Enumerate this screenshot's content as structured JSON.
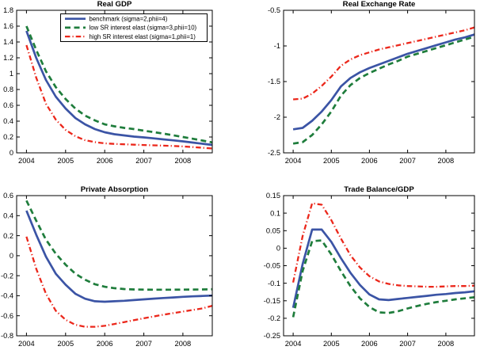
{
  "figure": {
    "background": "#ffffff",
    "axis_color": "#000000",
    "tick_label_color": "#000000"
  },
  "line_styles": [
    {
      "color": "#3B54A5",
      "dash": "solid",
      "width": 2.7
    },
    {
      "color": "#1F7D3C",
      "dash": "dashed",
      "width": 2.7
    },
    {
      "color": "#EB271B",
      "dash": "dashdot",
      "width": 2.3
    }
  ],
  "chart_data": [
    {
      "type": "line",
      "title": "Real GDP",
      "xlim": [
        2003.75,
        2008.75
      ],
      "ylim": [
        0,
        1.8
      ],
      "x_ticks": [
        "2004",
        "2005",
        "2006",
        "2007",
        "2008"
      ],
      "y_ticks": [
        "0",
        "0.2",
        "0.4",
        "0.6",
        "0.8",
        "1",
        "1.2",
        "1.4",
        "1.6",
        "1.8"
      ],
      "grid": false,
      "legend_visible": true,
      "x": [
        2004,
        2004.25,
        2004.5,
        2004.75,
        2005,
        2005.25,
        2005.5,
        2005.75,
        2006,
        2006.25,
        2006.5,
        2006.75,
        2007,
        2007.25,
        2007.5,
        2007.75,
        2008,
        2008.25,
        2008.5,
        2008.75
      ],
      "series": [
        {
          "name": "benchmark (sigma=2,phii=4)",
          "id": "benchmark",
          "values": [
            1.54,
            1.2,
            0.92,
            0.71,
            0.56,
            0.44,
            0.36,
            0.3,
            0.26,
            0.235,
            0.22,
            0.205,
            0.195,
            0.183,
            0.17,
            0.158,
            0.145,
            0.13,
            0.115,
            0.1
          ]
        },
        {
          "name": "low SR interest elast (sigma=3,phii=10)",
          "id": "low-sr-elast",
          "values": [
            1.6,
            1.3,
            1.03,
            0.83,
            0.68,
            0.56,
            0.47,
            0.41,
            0.36,
            0.335,
            0.315,
            0.3,
            0.28,
            0.262,
            0.243,
            0.222,
            0.2,
            0.178,
            0.155,
            0.132
          ]
        },
        {
          "name": "high SR interest elast (sigma=1,phii=1)",
          "id": "high-sr-elast",
          "values": [
            1.36,
            0.95,
            0.62,
            0.42,
            0.29,
            0.21,
            0.16,
            0.135,
            0.12,
            0.113,
            0.108,
            0.103,
            0.099,
            0.095,
            0.091,
            0.087,
            0.081,
            0.073,
            0.064,
            0.055
          ]
        }
      ]
    },
    {
      "type": "line",
      "title": "Real Exchange Rate",
      "xlim": [
        2003.75,
        2008.75
      ],
      "ylim": [
        -2.5,
        -0.5
      ],
      "x_ticks": [
        "2004",
        "2005",
        "2006",
        "2007",
        "2008"
      ],
      "y_ticks": [
        "-2.5",
        "-2",
        "-1.5",
        "-1",
        "-0.5"
      ],
      "grid": false,
      "legend_visible": false,
      "x": [
        2004,
        2004.25,
        2004.5,
        2004.75,
        2005,
        2005.25,
        2005.5,
        2005.75,
        2006,
        2006.25,
        2006.5,
        2006.75,
        2007,
        2007.25,
        2007.5,
        2007.75,
        2008,
        2008.25,
        2008.5,
        2008.75
      ],
      "series": [
        {
          "name": "benchmark (sigma=2,phii=4)",
          "id": "benchmark",
          "values": [
            -2.17,
            -2.15,
            -2.05,
            -1.92,
            -1.76,
            -1.57,
            -1.45,
            -1.37,
            -1.31,
            -1.26,
            -1.21,
            -1.16,
            -1.11,
            -1.07,
            -1.03,
            -0.99,
            -0.95,
            -0.91,
            -0.88,
            -0.84
          ]
        },
        {
          "name": "low SR interest elast (sigma=3,phii=10)",
          "id": "low-sr-elast",
          "values": [
            -2.37,
            -2.35,
            -2.25,
            -2.1,
            -1.92,
            -1.7,
            -1.55,
            -1.45,
            -1.38,
            -1.32,
            -1.26,
            -1.21,
            -1.15,
            -1.11,
            -1.07,
            -1.03,
            -0.99,
            -0.95,
            -0.91,
            -0.87
          ]
        },
        {
          "name": "high SR interest elast (sigma=1,phii=1)",
          "id": "high-sr-elast",
          "values": [
            -1.75,
            -1.74,
            -1.67,
            -1.56,
            -1.43,
            -1.28,
            -1.19,
            -1.13,
            -1.09,
            -1.05,
            -1.02,
            -0.99,
            -0.96,
            -0.93,
            -0.9,
            -0.87,
            -0.84,
            -0.81,
            -0.78,
            -0.74
          ]
        }
      ]
    },
    {
      "type": "line",
      "title": "Private Absorption",
      "xlim": [
        2003.75,
        2008.75
      ],
      "ylim": [
        -0.8,
        0.6
      ],
      "x_ticks": [
        "2004",
        "2005",
        "2006",
        "2007",
        "2008"
      ],
      "y_ticks": [
        "-0.8",
        "-0.6",
        "-0.4",
        "-0.2",
        "0",
        "0.2",
        "0.4",
        "0.6"
      ],
      "grid": false,
      "legend_visible": false,
      "x": [
        2004,
        2004.25,
        2004.5,
        2004.75,
        2005,
        2005.25,
        2005.5,
        2005.75,
        2006,
        2006.25,
        2006.5,
        2006.75,
        2007,
        2007.25,
        2007.5,
        2007.75,
        2008,
        2008.25,
        2008.5,
        2008.75
      ],
      "series": [
        {
          "name": "benchmark (sigma=2,phii=4)",
          "id": "benchmark",
          "values": [
            0.45,
            0.21,
            -0.01,
            -0.18,
            -0.29,
            -0.38,
            -0.43,
            -0.455,
            -0.46,
            -0.455,
            -0.45,
            -0.443,
            -0.436,
            -0.429,
            -0.423,
            -0.417,
            -0.411,
            -0.406,
            -0.402,
            -0.398
          ]
        },
        {
          "name": "low SR interest elast (sigma=3,phii=10)",
          "id": "low-sr-elast",
          "values": [
            0.55,
            0.35,
            0.16,
            0.02,
            -0.09,
            -0.18,
            -0.24,
            -0.285,
            -0.31,
            -0.325,
            -0.333,
            -0.337,
            -0.339,
            -0.34,
            -0.34,
            -0.34,
            -0.339,
            -0.338,
            -0.337,
            -0.335
          ]
        },
        {
          "name": "high SR interest elast (sigma=1,phii=1)",
          "id": "high-sr-elast",
          "values": [
            0.19,
            -0.13,
            -0.38,
            -0.55,
            -0.64,
            -0.69,
            -0.71,
            -0.71,
            -0.7,
            -0.682,
            -0.663,
            -0.644,
            -0.625,
            -0.607,
            -0.59,
            -0.574,
            -0.558,
            -0.542,
            -0.526,
            -0.5
          ]
        }
      ]
    },
    {
      "type": "line",
      "title": "Trade Balance/GDP",
      "xlim": [
        2003.75,
        2008.75
      ],
      "ylim": [
        -0.25,
        0.15
      ],
      "x_ticks": [
        "2004",
        "2005",
        "2006",
        "2007",
        "2008"
      ],
      "y_ticks": [
        "-0.25",
        "-0.2",
        "-0.15",
        "-0.1",
        "-0.05",
        "0",
        "0.05",
        "0.1",
        "0.15"
      ],
      "grid": false,
      "legend_visible": false,
      "x": [
        2004,
        2004.25,
        2004.5,
        2004.75,
        2005,
        2005.25,
        2005.5,
        2005.75,
        2006,
        2006.25,
        2006.5,
        2006.75,
        2007,
        2007.25,
        2007.5,
        2007.75,
        2008,
        2008.25,
        2008.5,
        2008.75
      ],
      "series": [
        {
          "name": "benchmark (sigma=2,phii=4)",
          "id": "benchmark",
          "values": [
            -0.17,
            -0.045,
            0.053,
            0.053,
            0.018,
            -0.028,
            -0.07,
            -0.105,
            -0.132,
            -0.146,
            -0.148,
            -0.145,
            -0.142,
            -0.139,
            -0.136,
            -0.133,
            -0.131,
            -0.128,
            -0.126,
            -0.123
          ]
        },
        {
          "name": "low SR interest elast (sigma=3,phii=10)",
          "id": "low-sr-elast",
          "values": [
            -0.197,
            -0.065,
            0.02,
            0.022,
            -0.018,
            -0.065,
            -0.108,
            -0.143,
            -0.168,
            -0.183,
            -0.185,
            -0.18,
            -0.172,
            -0.165,
            -0.159,
            -0.154,
            -0.15,
            -0.146,
            -0.143,
            -0.14
          ]
        },
        {
          "name": "high SR interest elast (sigma=1,phii=1)",
          "id": "high-sr-elast",
          "values": [
            -0.098,
            0.035,
            0.128,
            0.124,
            0.08,
            0.028,
            -0.02,
            -0.055,
            -0.08,
            -0.095,
            -0.102,
            -0.106,
            -0.108,
            -0.109,
            -0.11,
            -0.11,
            -0.109,
            -0.108,
            -0.108,
            -0.107
          ]
        }
      ]
    }
  ]
}
